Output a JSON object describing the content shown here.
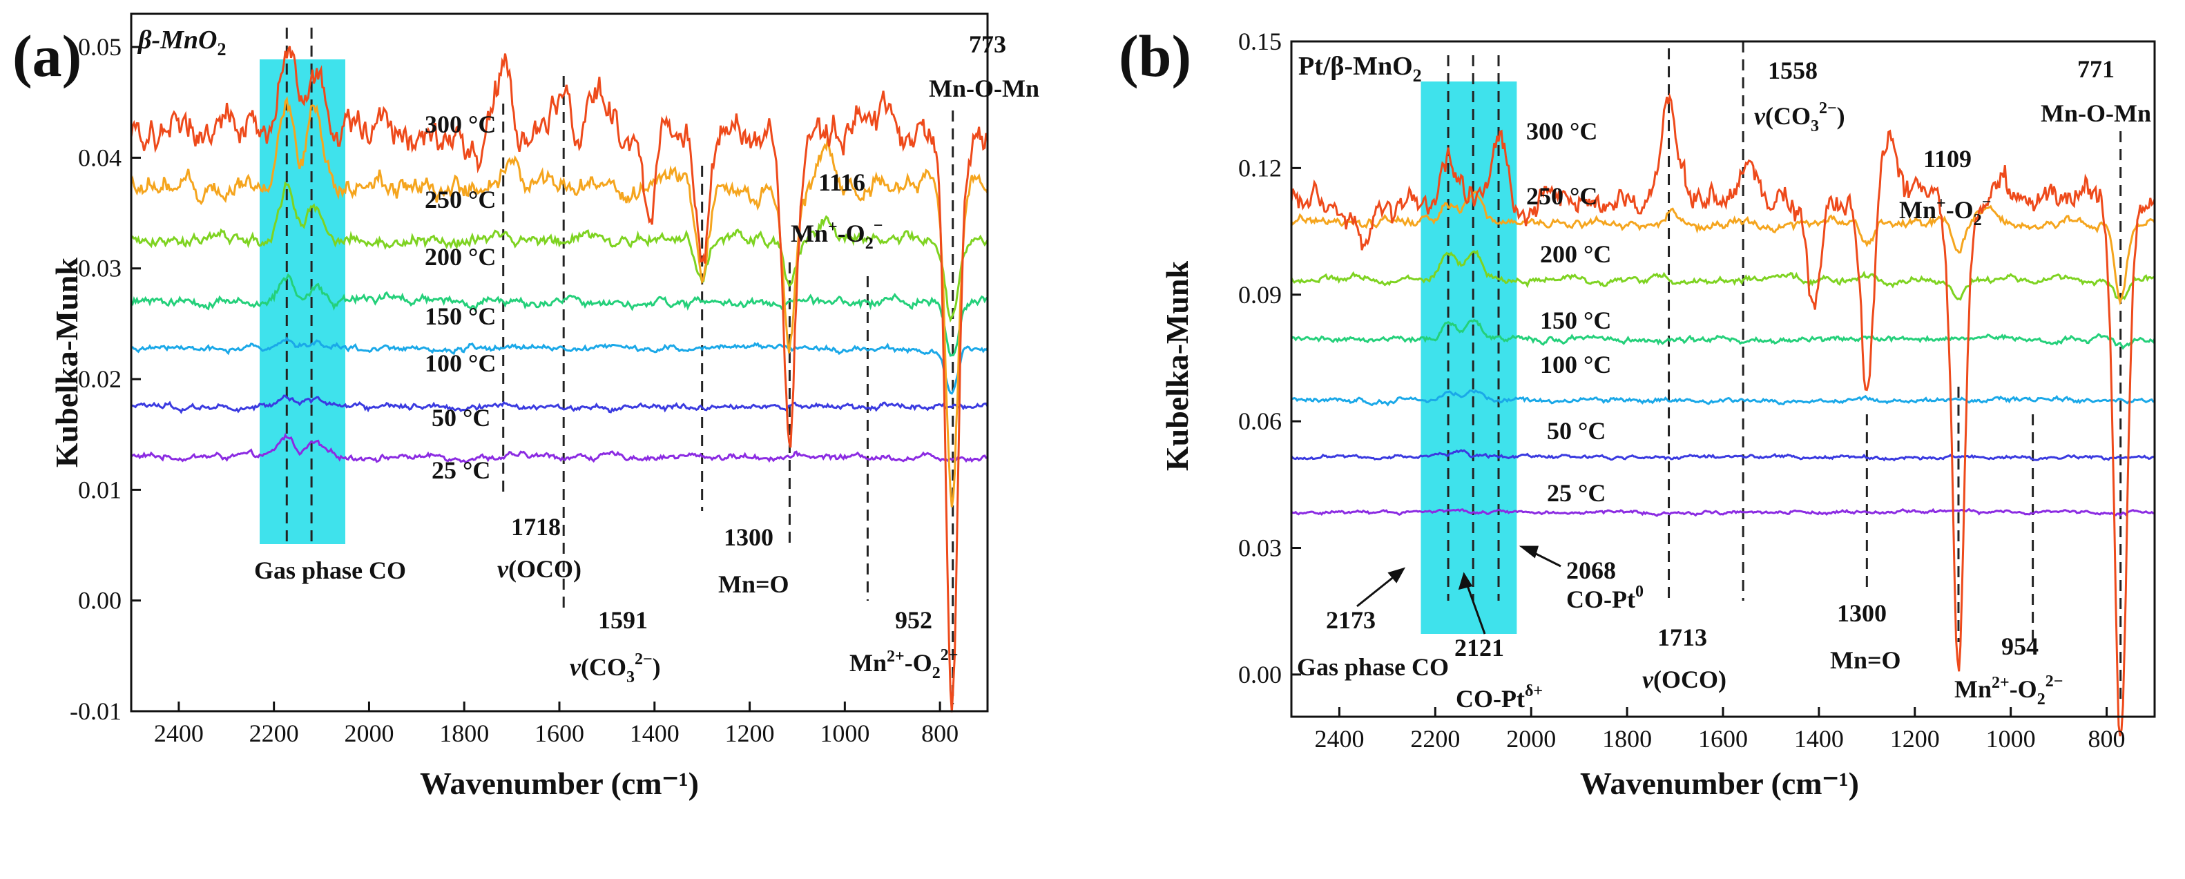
{
  "chart_data": [
    {
      "panel": "(a)",
      "type": "line",
      "sample": "β-MnO2",
      "sample_parts": [
        "β-MnO",
        "2"
      ],
      "xlabel": "Wavenumber (cm⁻¹)",
      "ylabel": "Kubelka-Munk",
      "xlim": [
        2500,
        700
      ],
      "ylim": [
        -0.01,
        0.053
      ],
      "xticks": [
        2400,
        2200,
        2000,
        1800,
        1600,
        1400,
        1200,
        1000,
        800
      ],
      "yticks": [
        -0.01,
        0.0,
        0.01,
        0.02,
        0.03,
        0.04,
        0.05
      ],
      "ytick_labels": [
        "-0.01",
        "0.00",
        "0.01",
        "0.02",
        "0.03",
        "0.04",
        "0.05"
      ],
      "highlight_band": [
        2230,
        2050
      ],
      "dashed_lines": [
        2173,
        2121,
        1718,
        1591,
        1300,
        1116,
        952,
        773
      ],
      "series": [
        {
          "name": "25 °C",
          "color": "#8b2be2",
          "baseline": 0.013,
          "peaks": [
            [
              2173,
              0.0018
            ],
            [
              2115,
              0.0012
            ]
          ],
          "dips": [],
          "noise": 0.0002
        },
        {
          "name": "50 °C",
          "color": "#3a3ae0",
          "baseline": 0.0175,
          "peaks": [
            [
              2173,
              0.0008
            ],
            [
              2115,
              0.0006
            ]
          ],
          "dips": [],
          "noise": 0.0002
        },
        {
          "name": "100 °C",
          "color": "#1aa8e8",
          "baseline": 0.0228,
          "peaks": [
            [
              2173,
              0.0007
            ],
            [
              2115,
              0.0005
            ]
          ],
          "dips": [
            [
              775,
              0.004
            ]
          ],
          "noise": 0.0002
        },
        {
          "name": "150 °C",
          "color": "#24d07a",
          "baseline": 0.027,
          "peaks": [
            [
              2173,
              0.0022
            ],
            [
              2115,
              0.0016
            ]
          ],
          "dips": [
            [
              775,
              0.005
            ]
          ],
          "noise": 0.0003
        },
        {
          "name": "200 °C",
          "color": "#7ed321",
          "baseline": 0.0325,
          "peaks": [
            [
              2173,
              0.0045
            ],
            [
              2115,
              0.0035
            ],
            [
              1040,
              0.002
            ]
          ],
          "dips": [
            [
              1300,
              0.004
            ],
            [
              1116,
              0.004
            ],
            [
              775,
              0.007
            ]
          ],
          "noise": 0.0004
        },
        {
          "name": "250 °C",
          "color": "#f5a51e",
          "baseline": 0.0375,
          "peaks": [
            [
              2173,
              0.008
            ],
            [
              2115,
              0.007
            ],
            [
              1700,
              0.002
            ],
            [
              1040,
              0.004
            ]
          ],
          "dips": [
            [
              1300,
              0.009
            ],
            [
              1116,
              0.015
            ],
            [
              775,
              0.028
            ]
          ],
          "noise": 0.0007
        },
        {
          "name": "300 °C",
          "color": "#ee4a1b",
          "baseline": 0.042,
          "peaks": [
            [
              2173,
              0.008
            ],
            [
              2115,
              0.007
            ],
            [
              1718,
              0.006
            ],
            [
              1590,
              0.004
            ],
            [
              1520,
              0.004
            ],
            [
              1250,
              0.001
            ]
          ],
          "dips": [
            [
              1410,
              0.008
            ],
            [
              1300,
              0.012
            ],
            [
              1116,
              0.028
            ],
            [
              775,
              0.05
            ]
          ],
          "noise": 0.0012
        }
      ],
      "annotations": {
        "gas_phase": "Gas phase CO",
        "a1718_num": "1718",
        "a1718_mode": "(OCO)",
        "a1591_num": "1591",
        "a1591_mode": "(CO",
        "a1591_sub": "3",
        "a1591_sup": "2−",
        "a1591_close": ")",
        "a1300_num": "1300",
        "a1300_mode": "Mn=O",
        "a1116_num": "1116",
        "a1116_mode_a": "Mn",
        "a1116_sup1": "+",
        "a1116_mode_b": "-O",
        "a1116_sub": "2",
        "a1116_sup2": "−",
        "a952_num": "952",
        "a952_mode_a": "Mn",
        "a952_sup1": "2+",
        "a952_mode_b": "-O",
        "a952_sub": "2",
        "a952_sup2": "2−",
        "a773_num": "773",
        "a773_mode": "Mn-O-Mn",
        "nu": "v"
      }
    },
    {
      "panel": "(b)",
      "type": "line",
      "sample": "Pt/β-MnO2",
      "sample_parts": [
        "Pt/β-MnO",
        "2"
      ],
      "xlabel": "Wavenumber (cm⁻¹)",
      "ylabel": "Kubelka-Munk",
      "xlim": [
        2500,
        700
      ],
      "ylim": [
        -0.01,
        0.15
      ],
      "xticks": [
        2400,
        2200,
        2000,
        1800,
        1600,
        1400,
        1200,
        1000,
        800
      ],
      "yticks": [
        0.0,
        0.03,
        0.06,
        0.09,
        0.12,
        0.15
      ],
      "ytick_labels": [
        "0.00",
        "0.03",
        "0.06",
        "0.09",
        "0.12",
        "0.15"
      ],
      "highlight_band": [
        2230,
        2030
      ],
      "dashed_lines": [
        2173,
        2121,
        2068,
        1713,
        1558,
        1300,
        1109,
        954,
        771
      ],
      "series": [
        {
          "name": "25 °C",
          "color": "#8b2be2",
          "baseline": 0.0385,
          "peaks": [
            [
              2150,
              0.001
            ]
          ],
          "dips": [],
          "noise": 0.0003
        },
        {
          "name": "50 °C",
          "color": "#3a3ae0",
          "baseline": 0.0515,
          "peaks": [
            [
              2150,
              0.0015
            ]
          ],
          "dips": [],
          "noise": 0.0003
        },
        {
          "name": "100 °C",
          "color": "#1aa8e8",
          "baseline": 0.065,
          "peaks": [
            [
              2173,
              0.002
            ],
            [
              2121,
              0.002
            ]
          ],
          "dips": [],
          "noise": 0.0004
        },
        {
          "name": "150 °C",
          "color": "#24d07a",
          "baseline": 0.0795,
          "peaks": [
            [
              2173,
              0.004
            ],
            [
              2121,
              0.004
            ]
          ],
          "dips": [
            [
              771,
              0.002
            ]
          ],
          "noise": 0.0005
        },
        {
          "name": "200 °C",
          "color": "#7ed321",
          "baseline": 0.0935,
          "peaks": [
            [
              2173,
              0.006
            ],
            [
              2121,
              0.007
            ]
          ],
          "dips": [
            [
              1109,
              0.004
            ],
            [
              771,
              0.005
            ]
          ],
          "noise": 0.0006
        },
        {
          "name": "250 °C",
          "color": "#f5a51e",
          "baseline": 0.107,
          "peaks": [
            [
              2173,
              0.004
            ],
            [
              2121,
              0.007
            ],
            [
              1710,
              0.002
            ],
            [
              1040,
              0.003
            ]
          ],
          "dips": [
            [
              1300,
              0.006
            ],
            [
              1109,
              0.008
            ],
            [
              771,
              0.018
            ]
          ],
          "noise": 0.0008
        },
        {
          "name": "300 °C",
          "color": "#ee4a1b",
          "baseline": 0.112,
          "peaks": [
            [
              2173,
              0.012
            ],
            [
              2068,
              0.015
            ],
            [
              1713,
              0.025
            ],
            [
              1550,
              0.015
            ],
            [
              1250,
              0.012
            ],
            [
              1020,
              0.005
            ]
          ],
          "dips": [
            [
              2350,
              0.012
            ],
            [
              1410,
              0.025
            ],
            [
              1300,
              0.045
            ],
            [
              1109,
              0.11
            ],
            [
              771,
              0.125
            ]
          ],
          "noise": 0.0025
        }
      ],
      "annotations": {
        "gas_phase": "Gas phase CO",
        "a2173": "2173",
        "a2121_num": "2121",
        "a2121_mode": "CO-Pt",
        "a2121_sup": "δ+",
        "a2068_num": "2068",
        "a2068_mode": "CO-Pt",
        "a2068_sup": "0",
        "a1713_num": "1713",
        "a1713_mode": "(OCO)",
        "a1558_num": "1558",
        "a1558_mode": "(CO",
        "a1558_sub": "3",
        "a1558_sup": "2−",
        "a1558_close": ")",
        "a1300_num": "1300",
        "a1300_mode": "Mn=O",
        "a1109_num": "1109",
        "a1109_mode_a": "Mn",
        "a1109_sup1": "+",
        "a1109_mode_b": "-O",
        "a1109_sub": "2",
        "a1109_sup2": "−",
        "a954_num": "954",
        "a954_mode_a": "Mn",
        "a954_sup1": "2+",
        "a954_mode_b": "-O",
        "a954_sub": "2",
        "a954_sup2": "2−",
        "a771_num": "771",
        "a771_mode": "Mn-O-Mn",
        "nu": "v"
      }
    }
  ],
  "colors": {
    "highlight": "#3fe2ec",
    "axis": "#111111",
    "dash": "#222222"
  }
}
